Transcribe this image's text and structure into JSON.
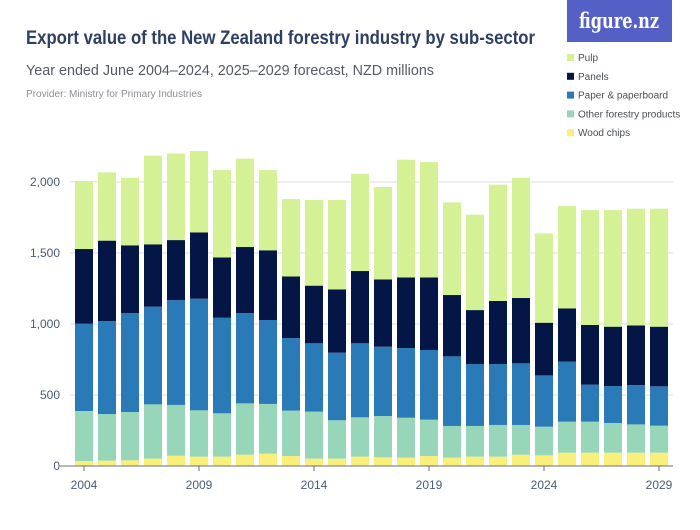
{
  "header": {
    "title": "Export value of the New Zealand forestry industry by sub-sector",
    "subtitle": "Year ended June 2004–2024, 2025–2029 forecast, NZD millions",
    "provider": "Provider: Ministry for Primary Industries"
  },
  "logo": {
    "text": "figure.nz",
    "color": "#5460c6"
  },
  "chart_data": {
    "type": "bar",
    "stacked": true,
    "title": "Export value of the New Zealand forestry industry by sub-sector",
    "subtitle": "Year ended June 2004–2024, 2025–2029 forecast, NZD millions",
    "xlabel": "",
    "ylabel": "",
    "ylim": [
      0,
      2250
    ],
    "grid": true,
    "legend_position": "top-right",
    "categories": [
      "2004",
      "2005",
      "2006",
      "2007",
      "2008",
      "2009",
      "2010",
      "2011",
      "2012",
      "2013",
      "2014",
      "2015",
      "2016",
      "2017",
      "2018",
      "2019",
      "2020",
      "2021",
      "2022",
      "2023",
      "2024",
      "2025",
      "2026",
      "2027",
      "2028",
      "2029"
    ],
    "x_tick_labels": [
      "2004",
      "2009",
      "2014",
      "2019",
      "2024",
      "2029"
    ],
    "y_ticks": [
      0,
      500,
      1000,
      1500,
      2000
    ],
    "y_tick_labels": [
      "0",
      "500",
      "1,000",
      "1,500",
      "2,000"
    ],
    "series": [
      {
        "name": "Wood chips",
        "color": "#f9ef79",
        "values": [
          35,
          38,
          40,
          52,
          73,
          66,
          66,
          80,
          87,
          70,
          52,
          52,
          66,
          61,
          59,
          70,
          59,
          66,
          66,
          80,
          75,
          94,
          94,
          94,
          94,
          94
        ]
      },
      {
        "name": "Other forestry products",
        "color": "#97d6b9",
        "values": [
          352,
          328,
          340,
          382,
          357,
          326,
          305,
          361,
          350,
          320,
          331,
          270,
          277,
          291,
          281,
          256,
          223,
          216,
          223,
          209,
          202,
          218,
          218,
          209,
          199,
          190
        ]
      },
      {
        "name": "Paper & paperboard",
        "color": "#2a7ab7",
        "values": [
          615,
          655,
          697,
          688,
          739,
          786,
          673,
          636,
          591,
          511,
          481,
          476,
          521,
          488,
          491,
          491,
          490,
          436,
          429,
          434,
          361,
          423,
          261,
          260,
          277,
          277
        ]
      },
      {
        "name": "Panels",
        "color": "#041645",
        "values": [
          526,
          566,
          477,
          439,
          422,
          467,
          425,
          465,
          491,
          434,
          406,
          446,
          509,
          474,
          497,
          511,
          432,
          380,
          444,
          460,
          371,
          375,
          420,
          418,
          420,
          420
        ]
      },
      {
        "name": "Pulp",
        "color": "#d4f195",
        "values": [
          479,
          481,
          476,
          624,
          610,
          573,
          615,
          622,
          565,
          545,
          603,
          629,
          685,
          650,
          829,
          812,
          652,
          672,
          819,
          847,
          629,
          723,
          809,
          821,
          822,
          831
        ]
      }
    ],
    "legend_order": [
      "Pulp",
      "Panels",
      "Paper & paperboard",
      "Other forestry products",
      "Wood chips"
    ]
  }
}
